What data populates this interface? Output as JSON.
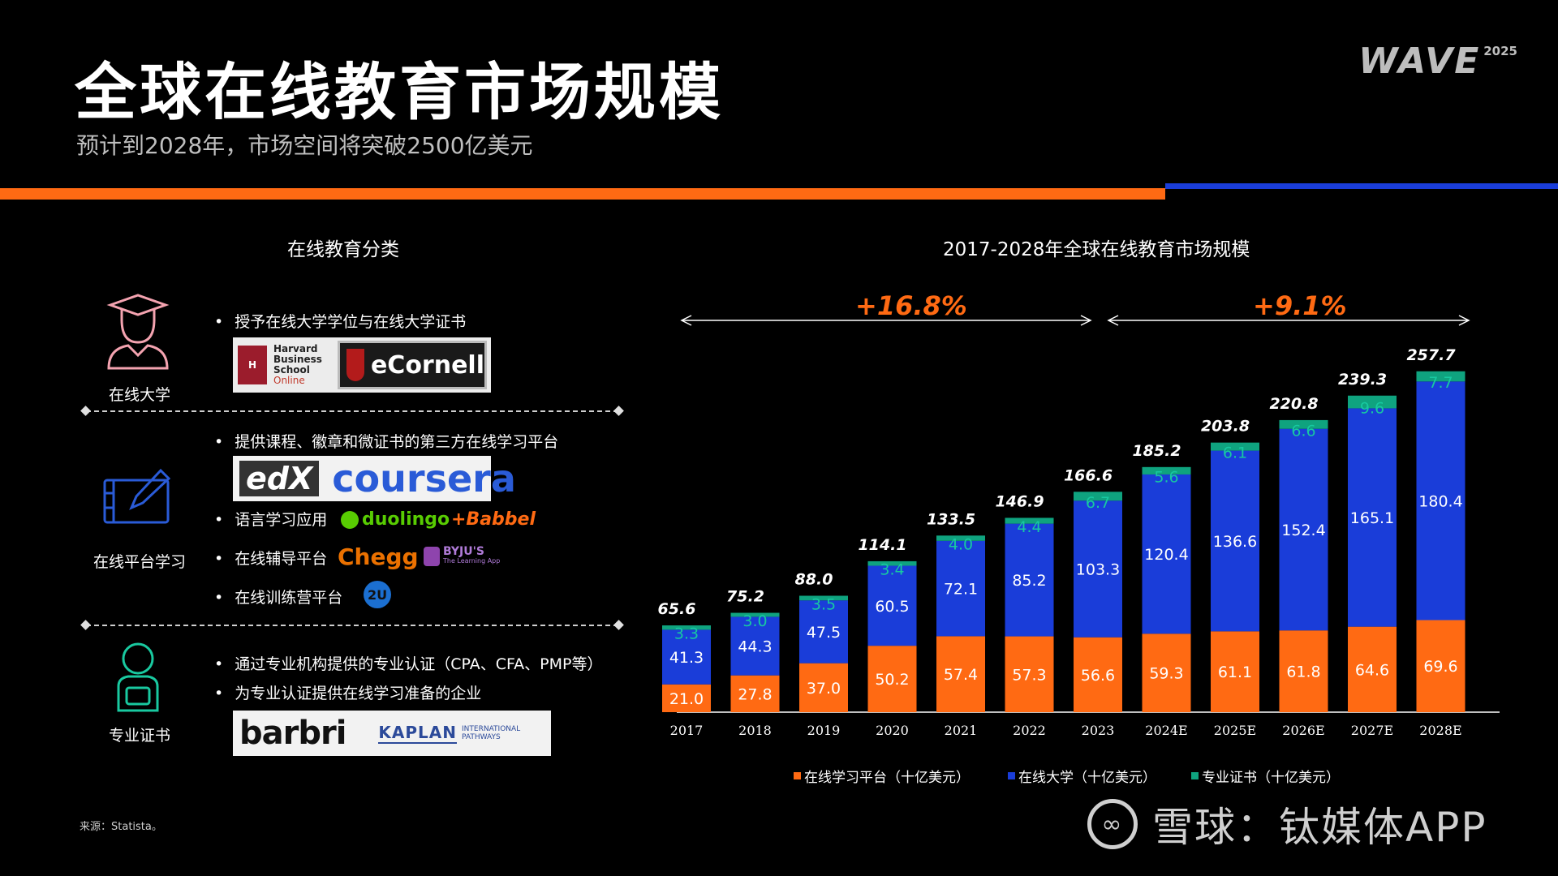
{
  "header": {
    "title": "全球在线教育市场规模",
    "subtitle": "预计到2028年，市场空间将突破2500亿美元",
    "brand_word": "WAVE",
    "brand_year": "2025"
  },
  "left_panel": {
    "heading": "在线教育分类",
    "categories": [
      {
        "label": "在线大学",
        "bullets": [
          "授予在线大学学位与在线大学证书"
        ],
        "logos": [
          "Harvard Business School Online",
          "eCornell"
        ]
      },
      {
        "label": "在线平台学习",
        "bullets": [
          "提供课程、徽章和微证书的第三方在线学习平台",
          "语言学习应用",
          "在线辅导平台",
          "在线训练营平台"
        ],
        "logos": [
          "edX",
          "coursera",
          "duolingo",
          "+Babbel",
          "Chegg",
          "BYJU'S",
          "The Learning App",
          "2U"
        ]
      },
      {
        "label": "专业证书",
        "bullets": [
          "通过专业机构提供的专业认证（CPA、CFA、PMP等）",
          "为专业认证提供在线学习准备的企业"
        ],
        "logos": [
          "barbri",
          "KAPLAN",
          "INTERNATIONAL",
          "PATHWAYS"
        ]
      }
    ],
    "hbs_lines": [
      "Harvard",
      "Business",
      "School",
      "Online"
    ]
  },
  "colors": {
    "orange": "#ff6a13",
    "blue": "#1a3dd9",
    "green": "#0fa37f"
  },
  "chart_data": {
    "type": "bar",
    "stacked": true,
    "title": "2017-2028年全球在线教育市场规模",
    "categories": [
      "2017",
      "2018",
      "2019",
      "2020",
      "2021",
      "2022",
      "2023",
      "2024E",
      "2025E",
      "2026E",
      "2027E",
      "2028E"
    ],
    "series": [
      {
        "name": "在线学习平台（十亿美元）",
        "color": "#ff6a13",
        "values": [
          21.0,
          27.8,
          37.0,
          50.2,
          57.4,
          57.3,
          56.6,
          59.3,
          61.1,
          61.8,
          64.6,
          69.6
        ]
      },
      {
        "name": "在线大学（十亿美元）",
        "color": "#1a3dd9",
        "values": [
          41.3,
          44.3,
          47.5,
          60.5,
          72.1,
          85.2,
          103.3,
          120.4,
          136.6,
          152.4,
          165.1,
          180.4
        ]
      },
      {
        "name": "专业证书（十亿美元）",
        "color": "#0fa37f",
        "values": [
          3.3,
          3.0,
          3.5,
          3.4,
          4.0,
          4.4,
          6.7,
          5.6,
          6.1,
          6.6,
          9.6,
          7.7
        ]
      }
    ],
    "totals": [
      "65.6",
      "75.2",
      "88.0",
      "114.1",
      "133.5",
      "146.9",
      "166.6",
      "185.2",
      "203.8",
      "220.8",
      "239.3",
      "257.7"
    ],
    "value_labels": [
      [
        "21.0",
        "27.8",
        "37.0",
        "50.2",
        "57.4",
        "57.3",
        "56.6",
        "59.3",
        "61.1",
        "61.8",
        "64.6",
        "69.6"
      ],
      [
        "41.3",
        "44.3",
        "47.5",
        "60.5",
        "72.1",
        "85.2",
        "103.3",
        "120.4",
        "136.6",
        "152.4",
        "165.1",
        "180.4"
      ],
      [
        "3.3",
        "3.0",
        "3.5",
        "3.4",
        "4.0",
        "4.4",
        "6.7",
        "5.6",
        "6.1",
        "6.6",
        "9.6",
        "7.7"
      ]
    ],
    "annotations": [
      {
        "text": "+16.8%",
        "from": "2017",
        "to": "2023"
      },
      {
        "text": "+9.1%",
        "from": "2023",
        "to": "2028E"
      }
    ],
    "legend_position": "bottom",
    "ylim": [
      0,
      260
    ]
  },
  "footer": {
    "source": "来源：Statista。",
    "watermark_text": "雪球：钛媒体APP"
  }
}
